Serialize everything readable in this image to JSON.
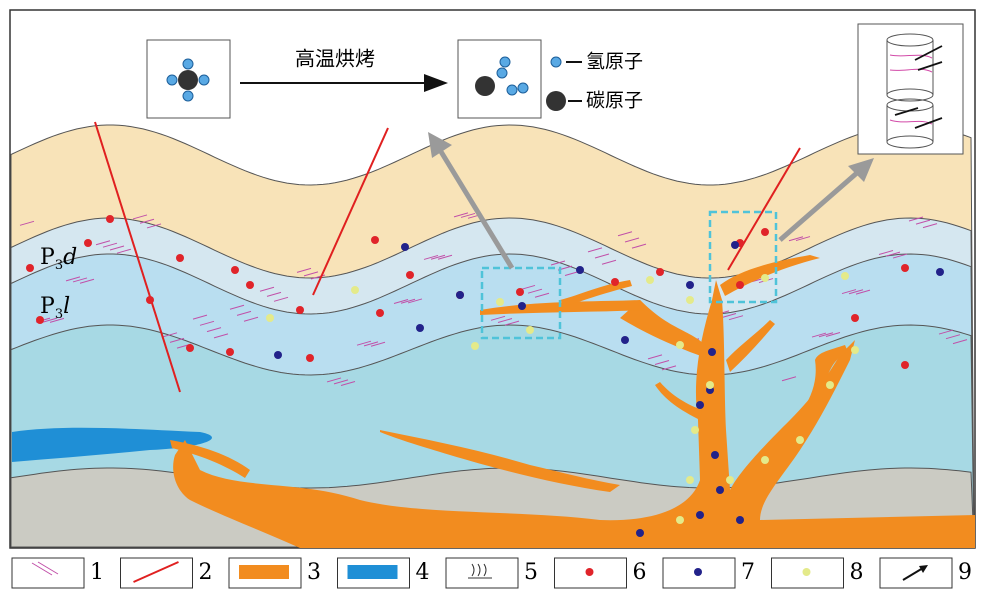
{
  "process": {
    "label": "高温烘烤"
  },
  "atom_legend": [
    {
      "label": "氢原子"
    },
    {
      "label": "碳原子"
    }
  ],
  "strata": [
    {
      "symbol": "P",
      "subscript": "3",
      "suffix": "d"
    },
    {
      "symbol": "P",
      "subscript": "3",
      "suffix": "l"
    }
  ],
  "legend": [
    1,
    2,
    3,
    4,
    5,
    6,
    7,
    8,
    9
  ]
}
